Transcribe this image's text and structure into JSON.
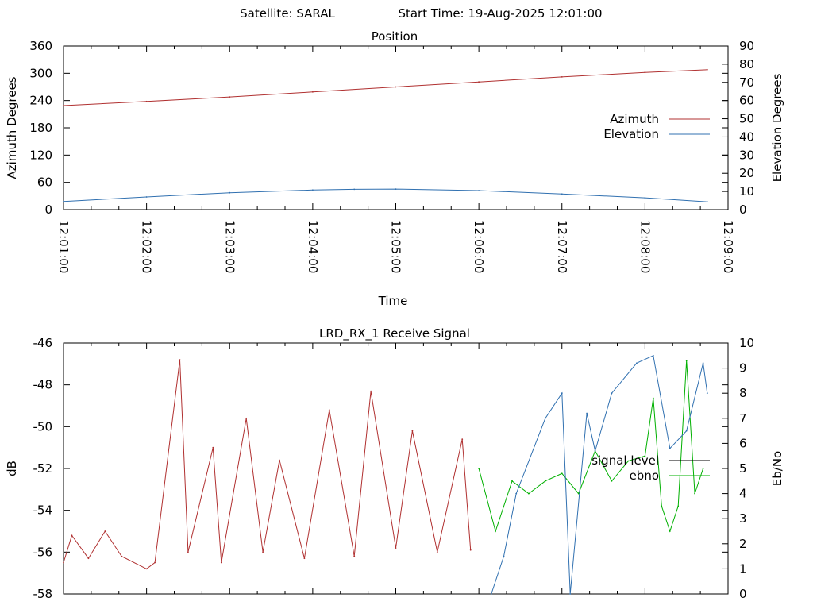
{
  "header": {
    "satellite": "Satellite: SARAL",
    "start_time": "Start Time: 19-Aug-2025 12:01:00"
  },
  "chart_data": [
    {
      "type": "line",
      "title": "Position",
      "xlabel": "Time",
      "ylabel": "Azimuth Degrees",
      "y2label": "Elevation Degrees",
      "xlim": [
        "12:01:00",
        "12:09:00"
      ],
      "xticks": [
        "12:01:00",
        "12:02:00",
        "12:03:00",
        "12:04:00",
        "12:05:00",
        "12:06:00",
        "12:07:00",
        "12:08:00",
        "12:09:00"
      ],
      "ylim": [
        0,
        360
      ],
      "yticks": [
        "0",
        "60",
        "120",
        "180",
        "240",
        "300",
        "360"
      ],
      "y2lim": [
        0,
        90
      ],
      "y2ticks": [
        "0",
        "10",
        "20",
        "30",
        "40",
        "50",
        "60",
        "70",
        "80",
        "90"
      ],
      "legend_position": "right",
      "colors": {
        "azimuth": "#b03030",
        "elevation": "#3070b0"
      },
      "series": [
        {
          "name": "Azimuth",
          "axis": "left",
          "x": [
            "12:01:00",
            "12:02:00",
            "12:03:00",
            "12:04:00",
            "12:05:00",
            "12:06:00",
            "12:07:00",
            "12:08:00",
            "12:08:45"
          ],
          "values": [
            229,
            238,
            248,
            259,
            270,
            281,
            292,
            302,
            308
          ]
        },
        {
          "name": "Elevation",
          "axis": "right",
          "x": [
            "12:01:00",
            "12:02:00",
            "12:03:00",
            "12:04:00",
            "12:04:30",
            "12:05:00",
            "12:06:00",
            "12:07:00",
            "12:08:00",
            "12:08:45"
          ],
          "values": [
            4.5,
            7.0,
            9.3,
            10.8,
            11.2,
            11.3,
            10.5,
            8.6,
            6.5,
            4.3
          ]
        }
      ]
    },
    {
      "type": "line",
      "title": "LRD_RX_1 Receive Signal",
      "ylabel": "dB",
      "y2label": "Eb/No",
      "xlim": [
        "12:01:00",
        "12:09:00"
      ],
      "ylim": [
        -58,
        -46
      ],
      "yticks": [
        "-58",
        "-56",
        "-54",
        "-52",
        "-50",
        "-48",
        "-46"
      ],
      "y2lim": [
        0,
        10
      ],
      "y2ticks": [
        "0",
        "1",
        "2",
        "3",
        "4",
        "5",
        "6",
        "7",
        "8",
        "9",
        "10"
      ],
      "legend_position": "right",
      "colors": {
        "signal_level": "#b03030",
        "signal_level_legend": "#000000",
        "ebno": "#00b000",
        "third_series": "#3070b0"
      },
      "series": [
        {
          "name": "signal level",
          "axis": "left",
          "x": [
            "12:01:00",
            "12:01:06",
            "12:01:18",
            "12:01:30",
            "12:01:42",
            "12:02:00",
            "12:02:06",
            "12:02:24",
            "12:02:30",
            "12:02:48",
            "12:02:54",
            "12:03:12",
            "12:03:24",
            "12:03:36",
            "12:03:54",
            "12:04:12",
            "12:04:30",
            "12:04:42",
            "12:05:00",
            "12:05:12",
            "12:05:30",
            "12:05:48",
            "12:05:54"
          ],
          "values": [
            -56.5,
            -55.2,
            -56.3,
            -55.0,
            -56.2,
            -56.8,
            -56.5,
            -46.8,
            -56.0,
            -51.0,
            -56.5,
            -49.6,
            -56.0,
            -51.6,
            -56.3,
            -49.2,
            -56.2,
            -48.3,
            -55.8,
            -50.2,
            -56.0,
            -50.6,
            -55.9
          ]
        },
        {
          "name": "ebno",
          "axis": "right",
          "x": [
            "12:06:00",
            "12:06:12",
            "12:06:24",
            "12:06:36",
            "12:06:48",
            "12:07:00",
            "12:07:12",
            "12:07:24",
            "12:07:36",
            "12:07:48",
            "12:08:00",
            "12:08:06",
            "12:08:12",
            "12:08:18",
            "12:08:24",
            "12:08:30",
            "12:08:36",
            "12:08:42"
          ],
          "values": [
            5.0,
            2.5,
            4.5,
            4.0,
            4.5,
            4.8,
            4.0,
            5.7,
            4.5,
            5.3,
            5.5,
            7.8,
            3.5,
            2.5,
            3.5,
            9.3,
            4.0,
            5.0
          ]
        },
        {
          "axis": "right",
          "x": [
            "12:06:09",
            "12:06:18",
            "12:06:27",
            "12:06:48",
            "12:07:00",
            "12:07:06",
            "12:07:18",
            "12:07:24",
            "12:07:36",
            "12:07:54",
            "12:08:06",
            "12:08:18",
            "12:08:30",
            "12:08:42",
            "12:08:45"
          ],
          "values": [
            0,
            1.5,
            4.0,
            7.0,
            8.0,
            0,
            7.2,
            5.7,
            8.0,
            9.2,
            9.5,
            5.8,
            6.5,
            9.2,
            8.0
          ]
        }
      ]
    }
  ]
}
